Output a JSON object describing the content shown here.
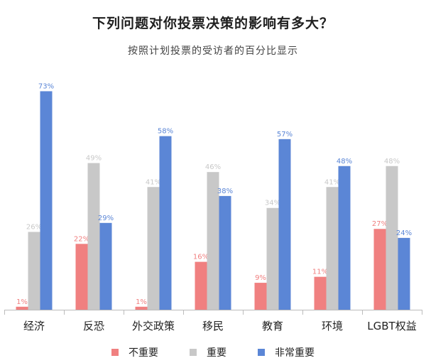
{
  "colors": {
    "not_important": "#f08080",
    "important": "#c8c8c8",
    "very_important": "#5b86d6",
    "axis": "#bcbcbc",
    "text": "#222222"
  },
  "chart_data": {
    "type": "bar",
    "title": "下列问题对你投票决策的影响有多大？",
    "subtitle": "按照计划投票的受访者的百分比显示",
    "categories": [
      "经济",
      "反恐",
      "外交政策",
      "移民",
      "教育",
      "环境",
      "LGBT权益"
    ],
    "series": [
      {
        "name": "不重要",
        "color": "#f08080",
        "values": [
          1,
          22,
          1,
          16,
          9,
          11,
          27
        ],
        "labels": [
          "1%",
          "22%",
          "1%",
          "16%",
          "9%",
          "11%",
          "27%"
        ]
      },
      {
        "name": "重要",
        "color": "#c8c8c8",
        "values": [
          26,
          49,
          41,
          46,
          34,
          41,
          48
        ],
        "labels": [
          "26%",
          "49%",
          "41%",
          "46%",
          "34%",
          "41%",
          "48%"
        ]
      },
      {
        "name": "非常重要",
        "color": "#5b86d6",
        "values": [
          73,
          29,
          58,
          38,
          57,
          48,
          24
        ],
        "labels": [
          "73%",
          "29%",
          "58%",
          "38%",
          "57%",
          "48%",
          "24%"
        ]
      }
    ],
    "ylim": [
      0,
      75
    ],
    "grid": false,
    "legend_position": "bottom-center"
  }
}
